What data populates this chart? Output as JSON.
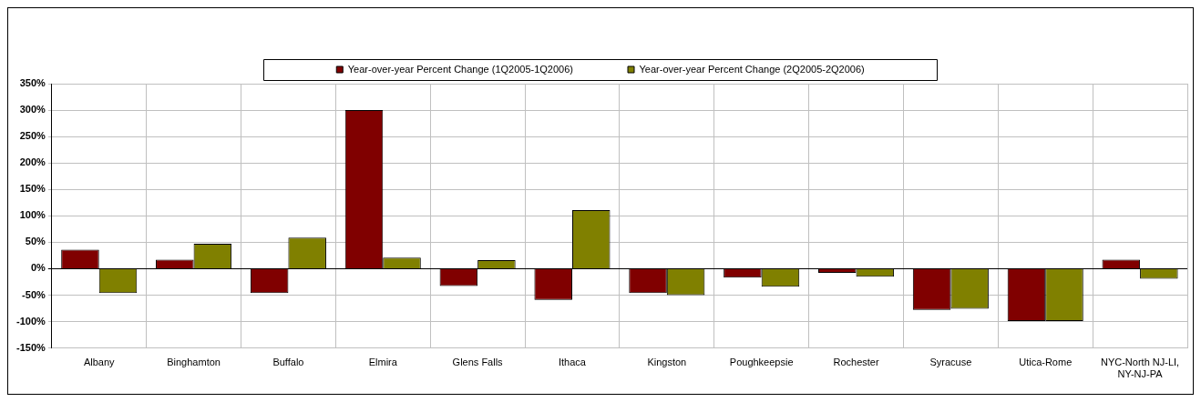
{
  "chart_data": {
    "type": "bar",
    "categories": [
      "Albany",
      "Binghamton",
      "Buffalo",
      "Elmira",
      "Glens Falls",
      "Ithaca",
      "Kingston",
      "Poughkeepsie",
      "Rochester",
      "Syracuse",
      "Utica-Rome",
      "NYC-North NJ-LI, NY-NJ-PA"
    ],
    "series": [
      {
        "name": "Year-over-year Percent Change (1Q2005-1Q2006)",
        "color": "#800000",
        "values": [
          36,
          17,
          -46,
          300,
          -33,
          -59,
          -46,
          -17,
          -8,
          -78,
          -99,
          17
        ]
      },
      {
        "name": "Year-over-year Percent Change (2Q2005-2Q2006)",
        "color": "#808000",
        "values": [
          -46,
          47,
          59,
          21,
          16,
          111,
          -50,
          -34,
          -15,
          -76,
          -99,
          -19
        ]
      }
    ],
    "ylim": [
      -150,
      350
    ],
    "yticks": [
      {
        "value": -150,
        "label": "-150%"
      },
      {
        "value": -100,
        "label": "-100%"
      },
      {
        "value": -50,
        "label": "-50%"
      },
      {
        "value": 0,
        "label": "0%"
      },
      {
        "value": 50,
        "label": "50%"
      },
      {
        "value": 100,
        "label": "100%"
      },
      {
        "value": 150,
        "label": "150%"
      },
      {
        "value": 200,
        "label": "200%"
      },
      {
        "value": 250,
        "label": "250%"
      },
      {
        "value": 300,
        "label": "300%"
      },
      {
        "value": 350,
        "label": "350%"
      }
    ],
    "grid": true,
    "legend": "top"
  }
}
